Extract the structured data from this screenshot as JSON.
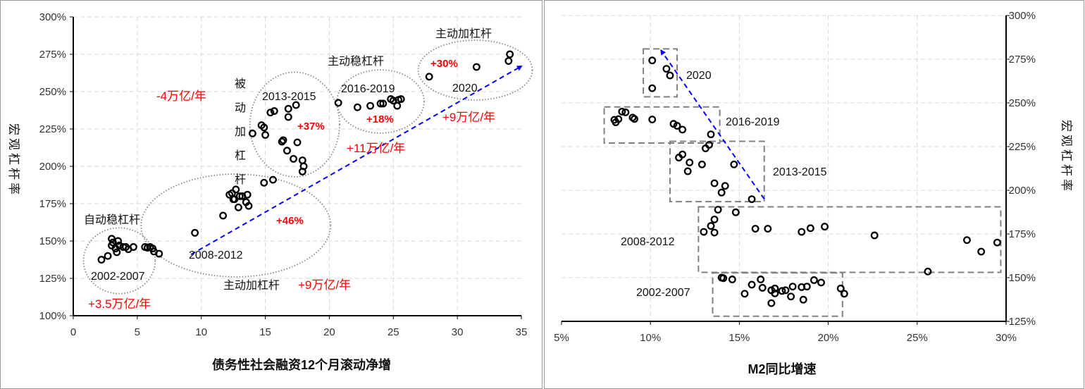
{
  "chart_data": [
    {
      "type": "scatter",
      "xlabel": "债务性社会融资12个月滚动净增",
      "ylabel": "宏观杠杆率",
      "xlim": [
        0,
        35
      ],
      "ylim": [
        100,
        300
      ],
      "xticks": [
        "0",
        "5",
        "10",
        "15",
        "20",
        "25",
        "30",
        "35"
      ],
      "yticks": [
        "100%",
        "125%",
        "150%",
        "175%",
        "200%",
        "225%",
        "250%",
        "275%",
        "300%"
      ],
      "grid": true,
      "groups": [
        {
          "name": "2002-2007",
          "points": [
            [
              2.2,
              137.5
            ],
            [
              2.7,
              140
            ],
            [
              3.0,
              151.5
            ],
            [
              3.1,
              149
            ],
            [
              3.0,
              147
            ],
            [
              3.3,
              145
            ],
            [
              3.5,
              150
            ],
            [
              3.4,
              142.5
            ],
            [
              3.6,
              147
            ],
            [
              3.9,
              146
            ],
            [
              4.1,
              146
            ],
            [
              4.3,
              144.5
            ],
            [
              4.7,
              146
            ],
            [
              5.6,
              146
            ],
            [
              5.8,
              145.5
            ],
            [
              6.0,
              146
            ],
            [
              6.2,
              145
            ],
            [
              6.3,
              143
            ],
            [
              6.7,
              141.5
            ]
          ]
        },
        {
          "name": "2008-2012",
          "points": [
            [
              9.5,
              155.5
            ],
            [
              11.7,
              167
            ],
            [
              12.2,
              181
            ],
            [
              12.4,
              182
            ],
            [
              12.7,
              184.5
            ],
            [
              12.5,
              178
            ],
            [
              12.6,
              178
            ],
            [
              13.0,
              180
            ],
            [
              12.9,
              172.5
            ],
            [
              13.2,
              180
            ],
            [
              13.5,
              176
            ],
            [
              13.6,
              181
            ],
            [
              13.7,
              173.5
            ],
            [
              14.9,
              189
            ],
            [
              15.6,
              191
            ]
          ]
        },
        {
          "name": "2013-2015",
          "points": [
            [
              14.0,
              222
            ],
            [
              14.7,
              227.5
            ],
            [
              14.9,
              226
            ],
            [
              15.0,
              221
            ],
            [
              15.4,
              236
            ],
            [
              15.7,
              237
            ],
            [
              16.3,
              216.5
            ],
            [
              16.4,
              217.5
            ],
            [
              16.7,
              210.5
            ],
            [
              16.8,
              238.5
            ],
            [
              16.8,
              233
            ],
            [
              17.2,
              205
            ],
            [
              17.4,
              241
            ],
            [
              17.5,
              216
            ],
            [
              17.9,
              204
            ],
            [
              18.0,
              200
            ],
            [
              17.9,
              196.5
            ]
          ]
        },
        {
          "name": "2016-2019",
          "points": [
            [
              20.7,
              242.5
            ],
            [
              22.2,
              239.5
            ],
            [
              23.2,
              240.5
            ],
            [
              24.0,
              242
            ],
            [
              24.2,
              242
            ],
            [
              24.8,
              245
            ],
            [
              25.0,
              244
            ],
            [
              25.4,
              244.5
            ],
            [
              25.3,
              240.5
            ],
            [
              25.6,
              245
            ]
          ]
        },
        {
          "name": "2020",
          "points": [
            [
              27.8,
              260
            ],
            [
              31.5,
              266.5
            ],
            [
              34.1,
              275
            ],
            [
              34.0,
              270.5
            ]
          ]
        }
      ],
      "ellipses": [
        {
          "name": "2002-2007",
          "cx": 3.6,
          "cy": 136.8,
          "rx": 2.8,
          "ry": 22
        },
        {
          "name": "2008-2012",
          "cx": 12.7,
          "cy": 160.4,
          "rx": 7.4,
          "ry": 34.4
        },
        {
          "name": "2013-2015",
          "cx": 17.3,
          "cy": 228,
          "rx": 3.5,
          "ry": 35
        },
        {
          "name": "2016-2019",
          "cx": 24.0,
          "cy": 243.4,
          "rx": 3.4,
          "ry": 21.2
        },
        {
          "name": "2020",
          "cx": 31.4,
          "cy": 264.4,
          "rx": 4.46,
          "ry": 20
        }
      ],
      "arrow": {
        "from": [
          9.2,
          141
        ],
        "to": [
          35,
          267
        ],
        "color": "#0000ff"
      },
      "annotations": {
        "a2020_phase": "主动加杠杆",
        "a2020_pct": "+30%",
        "a2020_year": "2020",
        "a2020_flow": "+9万亿/年",
        "a1619_phase": "主动稳杠杆",
        "a1619_year": "2016-2019",
        "a1619_pct": "+18%",
        "a1619_flow": "+11万亿/年",
        "a1315_phase": [
          "被",
          "动",
          "加",
          "杠",
          "杆"
        ],
        "a1315_flow": "-4万亿/年",
        "a1315_year": "2013-2015",
        "a1315_pct": "+37%",
        "a0207_phase": "自动稳杠杆",
        "a0207_year": "2002-2007",
        "a0207_flow": "+3.5万亿/年",
        "a0812_year": "2008-2012",
        "a0812_pct": "+46%",
        "a0812_phase": "主动加杠杆",
        "a0812_flow": "+9万亿/年"
      }
    },
    {
      "type": "scatter",
      "xlabel": "M2同比增速",
      "ylabel": "宏观杠杆率",
      "xlim": [
        5,
        30
      ],
      "ylim": [
        125,
        300
      ],
      "xticks": [
        "5%",
        "10%",
        "15%",
        "20%",
        "25%",
        "30%"
      ],
      "yticks": [
        "125%",
        "150%",
        "175%",
        "200%",
        "225%",
        "250%",
        "275%",
        "300%"
      ],
      "grid": true,
      "groups": [
        {
          "name": "2020",
          "points": [
            [
              10.1,
              274.3
            ],
            [
              10.9,
              269.5
            ],
            [
              11.1,
              265.7
            ],
            [
              10.1,
              258.4
            ]
          ]
        },
        {
          "name": "2016-2019",
          "points": [
            [
              8.05,
              238.9
            ],
            [
              7.97,
              240.3
            ],
            [
              8.2,
              240.7
            ],
            [
              8.4,
              245
            ],
            [
              8.6,
              244.6
            ],
            [
              9.0,
              241.6
            ],
            [
              9.1,
              240.8
            ],
            [
              10.1,
              240.5
            ],
            [
              11.3,
              238
            ],
            [
              11.5,
              236.9
            ],
            [
              11.8,
              234.7
            ],
            [
              13.4,
              232
            ]
          ]
        },
        {
          "name": "2013-2015",
          "points": [
            [
              13.3,
              226
            ],
            [
              13.1,
              224
            ],
            [
              11.8,
              220.5
            ],
            [
              11.6,
              218.7
            ],
            [
              12.2,
              215.9
            ],
            [
              12.9,
              214.8
            ],
            [
              14.7,
              214.8
            ],
            [
              12.1,
              210.9
            ],
            [
              13.6,
              204
            ],
            [
              14.2,
              202.5
            ],
            [
              14.0,
              198.7
            ],
            [
              15.7,
              194.9
            ]
          ]
        },
        {
          "name": "2008-2012",
          "points": [
            [
              13.8,
              188.9
            ],
            [
              14.8,
              187.4
            ],
            [
              13.6,
              183.3
            ],
            [
              13.4,
              179.6
            ],
            [
              13.0,
              176.2
            ],
            [
              13.6,
              175.8
            ],
            [
              15.9,
              178
            ],
            [
              16.6,
              178
            ],
            [
              18.5,
              176.2
            ],
            [
              19.0,
              178.3
            ],
            [
              19.8,
              179.2
            ],
            [
              22.6,
              174.2
            ],
            [
              27.8,
              171.5
            ],
            [
              28.6,
              164.9
            ],
            [
              29.5,
              170.1
            ],
            [
              25.6,
              153.5
            ]
          ]
        },
        {
          "name": "2002-2007",
          "points": [
            [
              14.0,
              150
            ],
            [
              14.1,
              149.7
            ],
            [
              14.6,
              149
            ],
            [
              16.2,
              149
            ],
            [
              15.7,
              146
            ],
            [
              15.3,
              140.8
            ],
            [
              16.3,
              144.2
            ],
            [
              16.8,
              142.8
            ],
            [
              17.0,
              143.8
            ],
            [
              17.0,
              141
            ],
            [
              17.4,
              142.4
            ],
            [
              17.6,
              142.8
            ],
            [
              18.0,
              144.9
            ],
            [
              17.9,
              139.2
            ],
            [
              16.8,
              135.4
            ],
            [
              18.5,
              144.6
            ],
            [
              18.8,
              144.9
            ],
            [
              18.6,
              137.4
            ],
            [
              19.2,
              148.6
            ],
            [
              19.6,
              147.2
            ],
            [
              20.7,
              143.8
            ],
            [
              20.9,
              140.8
            ]
          ]
        }
      ],
      "boxes": [
        {
          "name": "2020",
          "x": [
            9.6,
            11.5
          ],
          "y": [
            253.5,
            280.9
          ]
        },
        {
          "name": "2016-2019",
          "x": [
            7.4,
            13.9
          ],
          "y": [
            227,
            247.7
          ]
        },
        {
          "name": "2013-2015",
          "x": [
            11.1,
            16.4
          ],
          "y": [
            193.5,
            228
          ]
        },
        {
          "name": "2008-2012",
          "x": [
            12.7,
            29.7
          ],
          "y": [
            153,
            190.5
          ]
        },
        {
          "name": "2002-2007",
          "x": [
            13.5,
            20.8
          ],
          "y": [
            127.9,
            152.7
          ]
        }
      ],
      "arrow": {
        "from": [
          16.4,
          195
        ],
        "to": [
          10.6,
          280
        ],
        "color": "#0000ff"
      },
      "annotations": {
        "b2020": "2020",
        "b1619": "2016-2019",
        "b1315": "2013-2015",
        "b0812": "2008-2012",
        "b0207": "2002-2007"
      }
    }
  ]
}
